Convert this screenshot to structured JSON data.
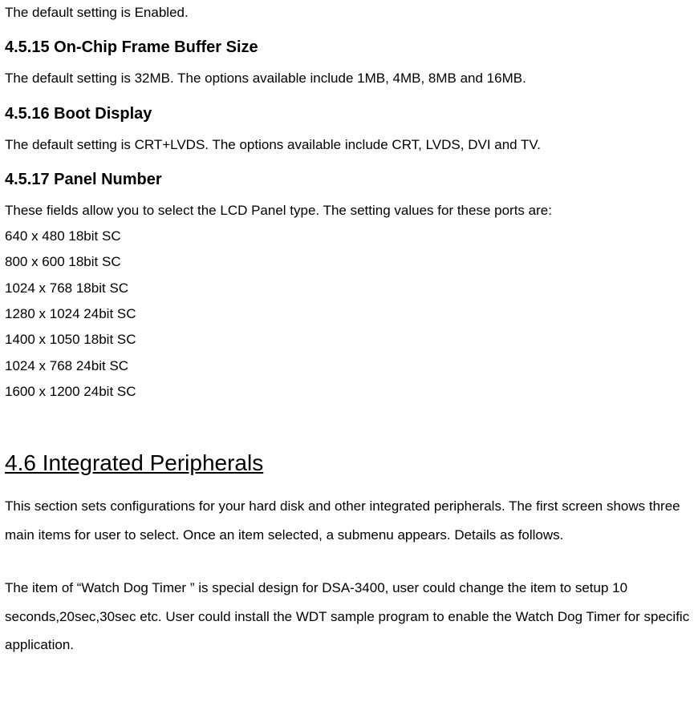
{
  "intro_line": "The default setting is Enabled.",
  "sections": {
    "s15": {
      "heading": "4.5.15 On-Chip Frame Buffer Size",
      "body": "The default setting is 32MB. The options available include 1MB, 4MB, 8MB and 16MB."
    },
    "s16": {
      "heading": "4.5.16 Boot Display",
      "body": "The default setting is CRT+LVDS. The options available include CRT, LVDS, DVI and TV."
    },
    "s17": {
      "heading": "4.5.17 Panel Number",
      "body": "These fields allow you to select the LCD Panel type. The setting values for these ports are:",
      "panel_values": [
        "640 x 480 18bit SC",
        "800 x 600 18bit SC",
        "1024 x 768 18bit SC",
        "1280 x 1024 24bit SC",
        "1400 x 1050 18bit SC",
        "1024 x 768 24bit SC",
        "1600 x 1200 24bit SC"
      ]
    }
  },
  "main46": {
    "heading": "4.6 Integrated Peripherals",
    "para1": "This section sets configurations for your hard disk and other integrated peripherals. The first screen shows three main items for user to select. Once an item selected, a submenu appears. Details as follows.",
    "para2": "The item of “Watch Dog Timer ” is special design for DSA-3400, user could change the item to setup 10 seconds,20sec,30sec etc. User could install the WDT sample program to enable the Watch Dog Timer for specific application."
  },
  "style": {
    "background_color": "#ffffff",
    "text_color": "#000000",
    "font_family": "Arial",
    "body_fontsize": 17,
    "subheading_fontsize": 20,
    "mainheading_fontsize": 28,
    "main_heading_underline": true
  }
}
